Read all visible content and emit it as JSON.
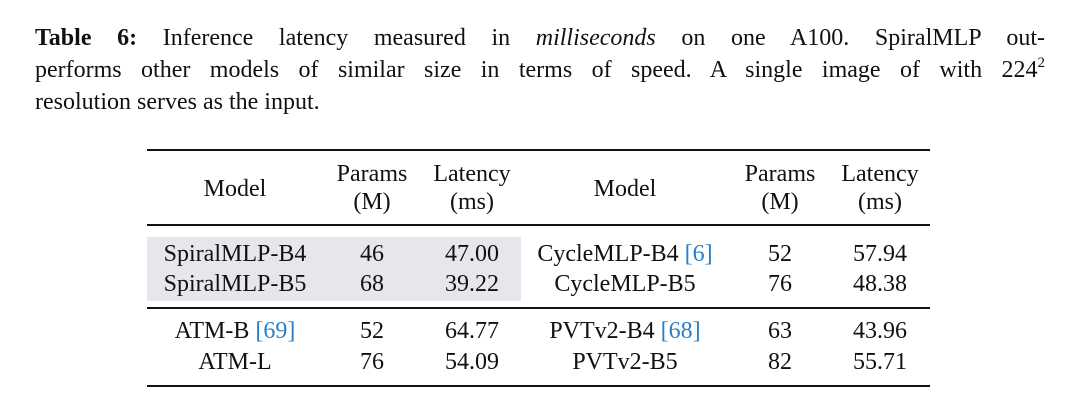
{
  "caption": {
    "label": "Table 6:",
    "line1_a": " Inference latency measured in ",
    "line1_italic": "milliseconds",
    "line1_b": " on one A100. SpiralMLP out-",
    "line2": "performs other models of similar size in terms of speed. A single image of with 224",
    "line2_sup": "2",
    "line3": "resolution serves as the input."
  },
  "table": {
    "header": [
      [
        "Model"
      ],
      [
        "Params",
        "(M)"
      ],
      [
        "Latency",
        "(ms)"
      ],
      [
        "Model"
      ],
      [
        "Params",
        "(M)"
      ],
      [
        "Latency",
        "(ms)"
      ]
    ],
    "rows": [
      [
        {
          "model": "SpiralMLP-B4"
        },
        46,
        "47.00",
        {
          "model": "CycleMLP-B4",
          "ref": "[6]"
        },
        52,
        "57.94"
      ],
      [
        {
          "model": "SpiralMLP-B5"
        },
        68,
        "39.22",
        {
          "model": "CycleMLP-B5"
        },
        76,
        "48.38"
      ],
      [
        {
          "model": "ATM-B",
          "ref": "[69]"
        },
        52,
        "64.77",
        {
          "model": "PVTv2-B4",
          "ref": "[68]"
        },
        63,
        "43.96"
      ],
      [
        {
          "model": "ATM-L"
        },
        76,
        "54.09",
        {
          "model": "PVTv2-B5"
        },
        82,
        "55.71"
      ]
    ]
  }
}
